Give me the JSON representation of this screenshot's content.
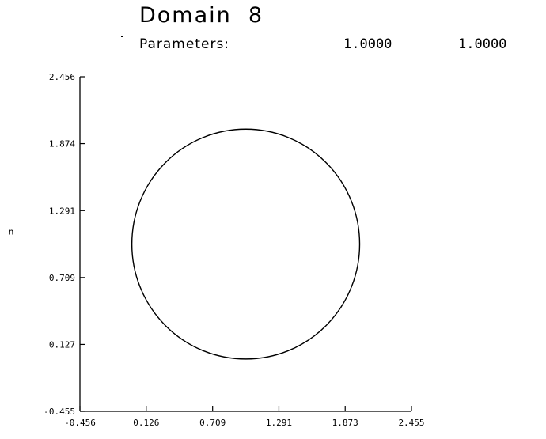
{
  "header": {
    "title": "Domain  8",
    "params_label": "Parameters:",
    "param_values": [
      "1.0000",
      "1.0000"
    ]
  },
  "chart_data": {
    "type": "line",
    "title": "Domain  8",
    "xlabel": "",
    "ylabel": "n",
    "xlim": [
      -0.456,
      2.455
    ],
    "ylim": [
      -0.455,
      2.456
    ],
    "x_ticks": [
      "-0.456",
      "0.126",
      "0.709",
      "1.291",
      "1.873",
      "2.455"
    ],
    "y_ticks": [
      "-0.455",
      "0.127",
      "0.709",
      "1.291",
      "1.874",
      "2.456"
    ],
    "grid": false,
    "series": [
      {
        "shape": "circle",
        "center": [
          1.0,
          1.0
        ],
        "radius": 1.0,
        "color": "#000000"
      }
    ]
  }
}
